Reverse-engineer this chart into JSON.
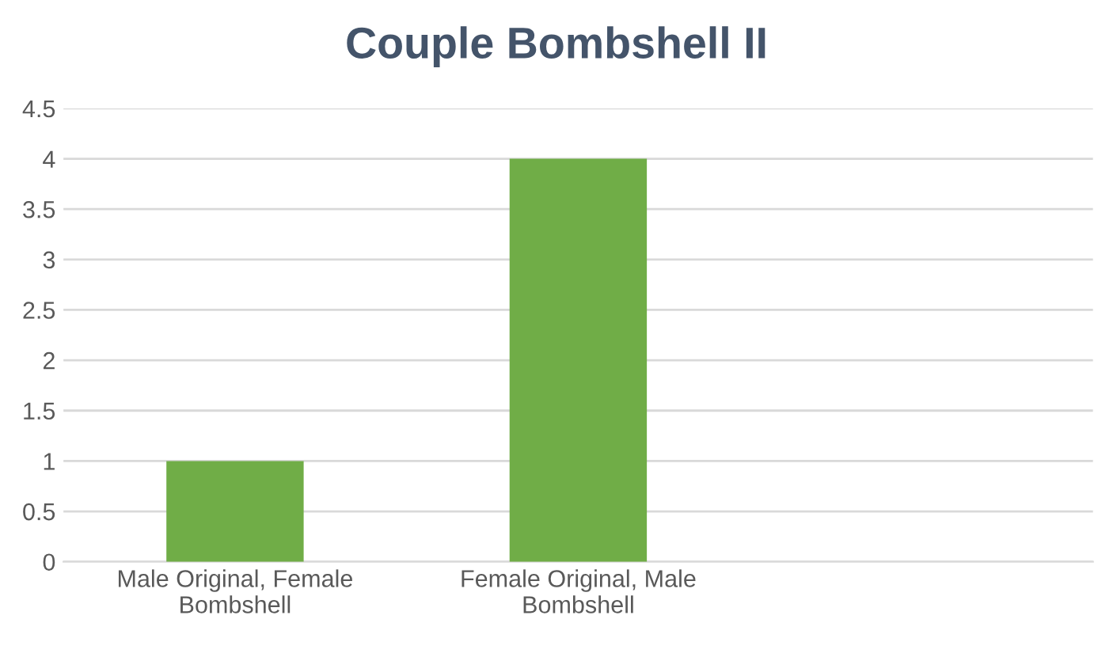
{
  "chart_data": {
    "type": "bar",
    "title": "Couple Bombshell II",
    "categories": [
      "Male Original, Female\nBombshell",
      "Female Original, Male\nBombshell",
      null
    ],
    "values": [
      1,
      4,
      null
    ],
    "color": "#70ad47",
    "ylim": [
      0,
      4.5
    ],
    "yticks": [
      0,
      0.5,
      1,
      1.5,
      2,
      2.5,
      3,
      3.5,
      4,
      4.5
    ],
    "grid": "y"
  }
}
